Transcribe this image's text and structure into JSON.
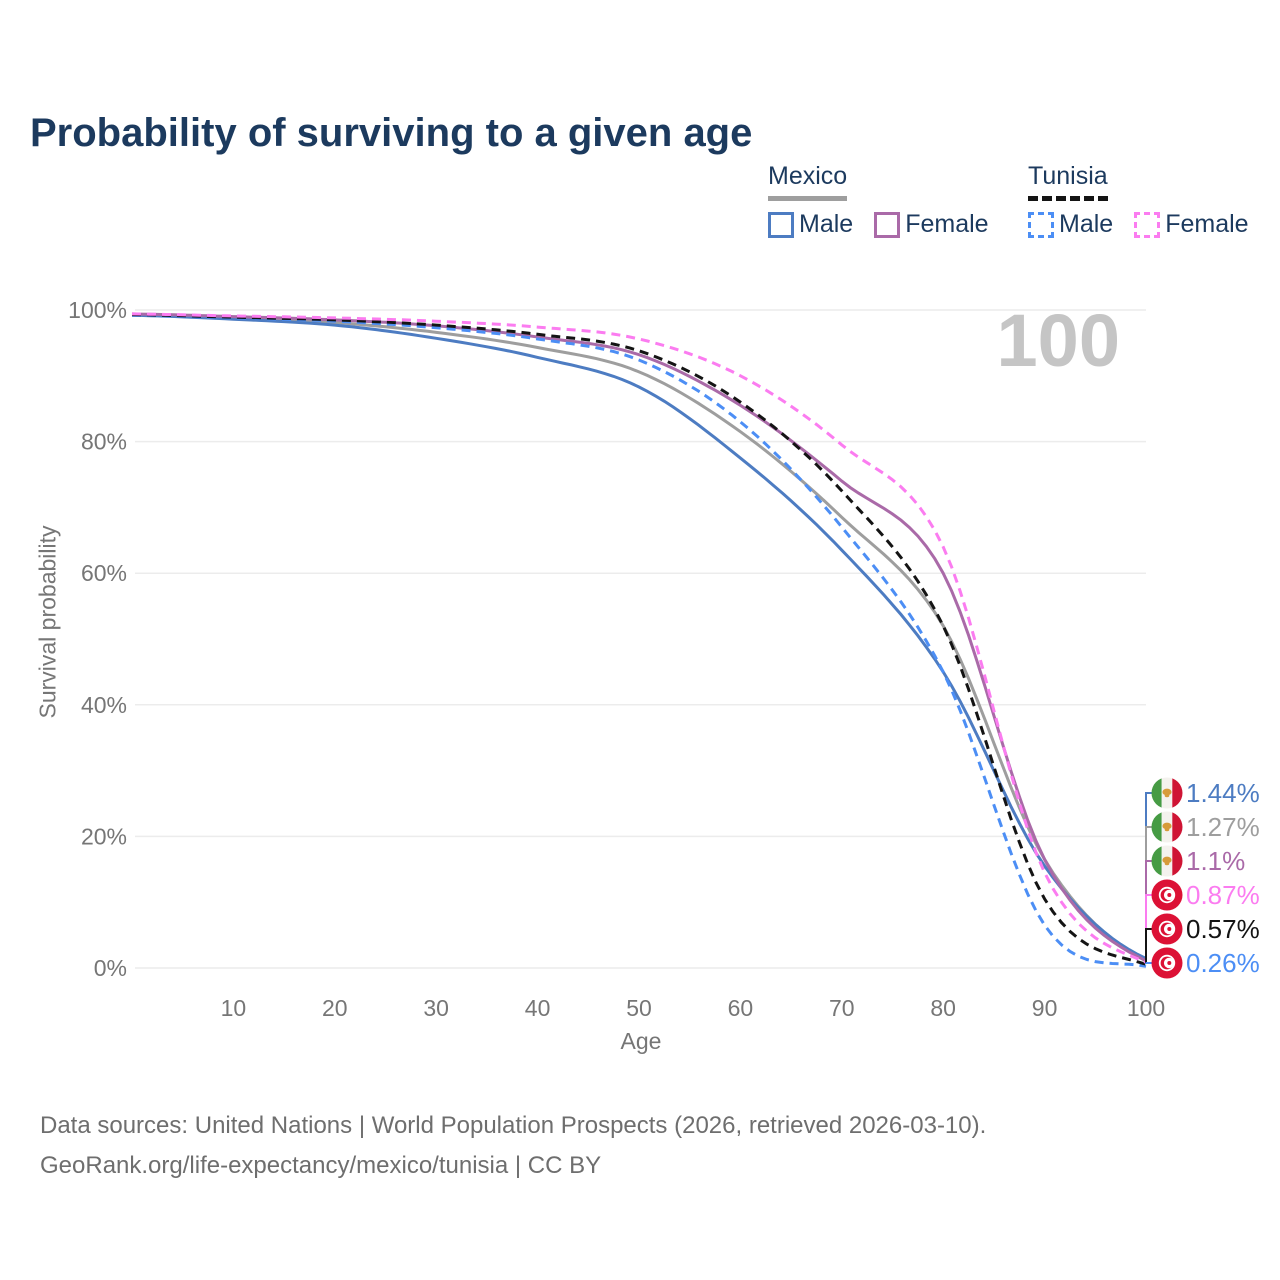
{
  "title": "Probability of surviving to a given age",
  "legend": {
    "groups": [
      {
        "country": "Mexico",
        "line_style": "solid",
        "underline_color": "#9e9e9e",
        "items": [
          {
            "label": "Male",
            "color": "#4d7cc2",
            "dashed": false
          },
          {
            "label": "Female",
            "color": "#aa6aa8",
            "dashed": false
          }
        ]
      },
      {
        "country": "Tunisia",
        "line_style": "dashed",
        "underline_color": "#141414",
        "items": [
          {
            "label": "Male",
            "color": "#4c8ef5",
            "dashed": true
          },
          {
            "label": "Female",
            "color": "#fb7cf0",
            "dashed": true
          }
        ]
      }
    ]
  },
  "chart_data": {
    "type": "line",
    "title": "Probability of surviving to a given age",
    "xlabel": "Age",
    "ylabel": "Survival probability",
    "xlim": [
      0,
      100
    ],
    "ylim": [
      0,
      100
    ],
    "grid": true,
    "legend_position": "top-right",
    "watermark": "100",
    "x": [
      0,
      10,
      20,
      30,
      40,
      50,
      60,
      70,
      80,
      90,
      100
    ],
    "x_tick_values": [
      10,
      20,
      30,
      40,
      50,
      60,
      70,
      80,
      90,
      100
    ],
    "x_ticks": [
      "10",
      "20",
      "30",
      "40",
      "50",
      "60",
      "70",
      "80",
      "90",
      "100"
    ],
    "y_tick_values": [
      100,
      80,
      60,
      40,
      20,
      0
    ],
    "y_ticks": [
      "100%",
      "80%",
      "60%",
      "40%",
      "20%",
      "0%"
    ],
    "series": [
      {
        "name": "Mexico Both sexes",
        "color": "#9e9e9e",
        "dashed": false,
        "values": [
          99.3,
          98.8,
          98.1,
          96.6,
          94.3,
          90.6,
          81.5,
          68.5,
          52.0,
          16.5,
          1.27
        ]
      },
      {
        "name": "Mexico Male",
        "color": "#4d7cc2",
        "dashed": false,
        "values": [
          99.2,
          98.6,
          97.7,
          95.7,
          92.8,
          88.3,
          77.5,
          63.5,
          45.0,
          15.5,
          1.44
        ]
      },
      {
        "name": "Mexico Female",
        "color": "#aa6aa8",
        "dashed": false,
        "values": [
          99.4,
          99.0,
          98.5,
          97.6,
          95.9,
          93.2,
          85.5,
          74.0,
          60.0,
          16.5,
          1.1
        ]
      },
      {
        "name": "Tunisia Male",
        "color": "#4c8ef5",
        "dashed": true,
        "values": [
          99.2,
          98.8,
          98.3,
          97.3,
          95.6,
          92.4,
          83.0,
          67.0,
          45.0,
          6.5,
          0.26
        ]
      },
      {
        "name": "Tunisia Both sexes",
        "color": "#141414",
        "dashed": true,
        "values": [
          99.3,
          98.9,
          98.5,
          97.7,
          96.3,
          93.8,
          86.0,
          72.5,
          52.0,
          10.5,
          0.57
        ]
      },
      {
        "name": "Tunisia Female",
        "color": "#fb7cf0",
        "dashed": true,
        "values": [
          99.4,
          99.1,
          98.8,
          98.3,
          97.4,
          95.6,
          90.0,
          79.5,
          64.0,
          14.5,
          0.87
        ]
      }
    ],
    "end_labels": [
      {
        "value": "1.44%",
        "color": "#4d7cc2",
        "flag": "mexico"
      },
      {
        "value": "1.27%",
        "color": "#9e9e9e",
        "flag": "mexico"
      },
      {
        "value": "1.1%",
        "color": "#aa6aa8",
        "flag": "mexico"
      },
      {
        "value": "0.87%",
        "color": "#fb7cf0",
        "flag": "tunisia"
      },
      {
        "value": "0.57%",
        "color": "#141414",
        "flag": "tunisia"
      },
      {
        "value": "0.26%",
        "color": "#4c8ef5",
        "flag": "tunisia"
      }
    ]
  },
  "colors": {
    "title_text": "#1c3a5e",
    "axis_text": "#767676",
    "gridline": "#ececec",
    "watermark": "#c5c5c5",
    "footer_text": "#6e6e6e",
    "flag_mexico_green": "#469b44",
    "flag_mexico_white": "#f4f2ee",
    "flag_mexico_red": "#cf1434",
    "flag_mexico_eagle": "#d79b3a",
    "flag_tunisia_red": "#dc1135",
    "flag_tunisia_white": "#ffffff"
  },
  "footer": {
    "line1": "Data sources: United Nations | World Population Prospects (2026, retrieved 2026-03-10).",
    "line2": "GeoRank.org/life-expectancy/mexico/tunisia | CC BY"
  }
}
